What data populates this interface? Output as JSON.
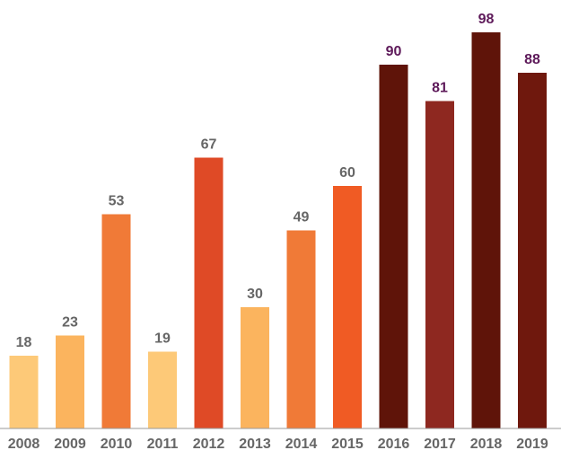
{
  "chart_data": {
    "type": "bar",
    "title": "",
    "xlabel": "",
    "ylabel": "",
    "ylim": [
      0,
      100
    ],
    "grid": false,
    "legend": "none",
    "categories": [
      "2008",
      "2009",
      "2010",
      "2011",
      "2012",
      "2013",
      "2014",
      "2015",
      "2016",
      "2017",
      "2018",
      "2019"
    ],
    "values": [
      18,
      23,
      53,
      19,
      67,
      30,
      49,
      60,
      90,
      81,
      98,
      88
    ],
    "bar_colors": [
      "#FDC978",
      "#FBB45E",
      "#F07A37",
      "#FDC978",
      "#DF4A26",
      "#FBB45E",
      "#F07A37",
      "#F05B24",
      "#5F1409",
      "#8E2820",
      "#5F1409",
      "#6F180D"
    ],
    "label_colors": [
      "#666666",
      "#666666",
      "#666666",
      "#666666",
      "#666666",
      "#666666",
      "#666666",
      "#666666",
      "#5E1A5A",
      "#5E1A5A",
      "#5E1A5A",
      "#5E1A5A"
    ],
    "axis_color": "#999999"
  }
}
